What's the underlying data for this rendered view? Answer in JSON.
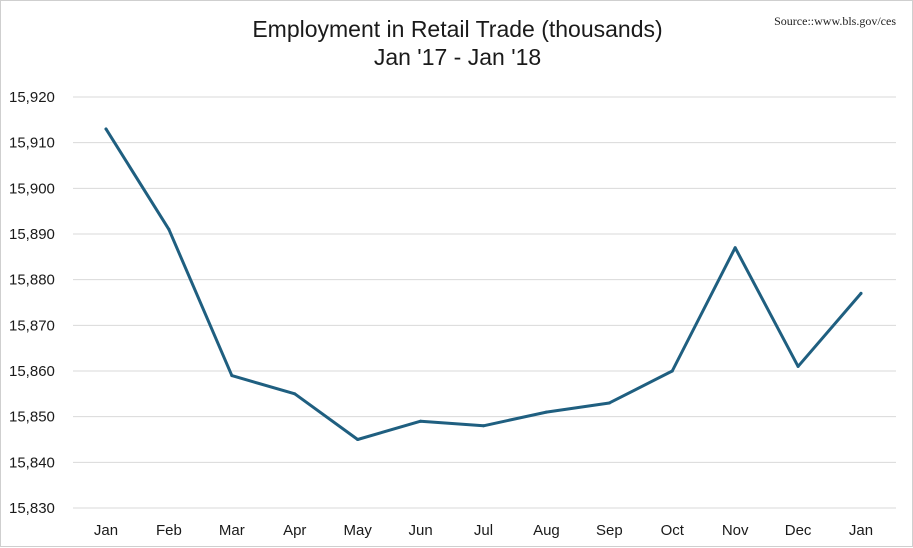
{
  "source_note": "Source::www.bls.gov/ces",
  "chart_data": {
    "type": "line",
    "title": "Employment in Retail Trade (thousands)",
    "subtitle": "Jan '17 - Jan '18",
    "xlabel": "",
    "ylabel": "",
    "categories": [
      "Jan",
      "Feb",
      "Mar",
      "Apr",
      "May",
      "Jun",
      "Jul",
      "Aug",
      "Sep",
      "Oct",
      "Nov",
      "Dec",
      "Jan"
    ],
    "series": [
      {
        "values": [
          15913,
          15891,
          15859,
          15855,
          15845,
          15849,
          15848,
          15851,
          15853,
          15860,
          15887,
          15861,
          15877
        ],
        "color": "#1f5f80"
      }
    ],
    "yticks": [
      "15,830",
      "15,840",
      "15,850",
      "15,860",
      "15,870",
      "15,880",
      "15,890",
      "15,900",
      "15,910",
      "15,920"
    ],
    "ylim": [
      15830,
      15920
    ],
    "grid": true,
    "grid_color": "#d9d9d9",
    "legend": "none"
  }
}
